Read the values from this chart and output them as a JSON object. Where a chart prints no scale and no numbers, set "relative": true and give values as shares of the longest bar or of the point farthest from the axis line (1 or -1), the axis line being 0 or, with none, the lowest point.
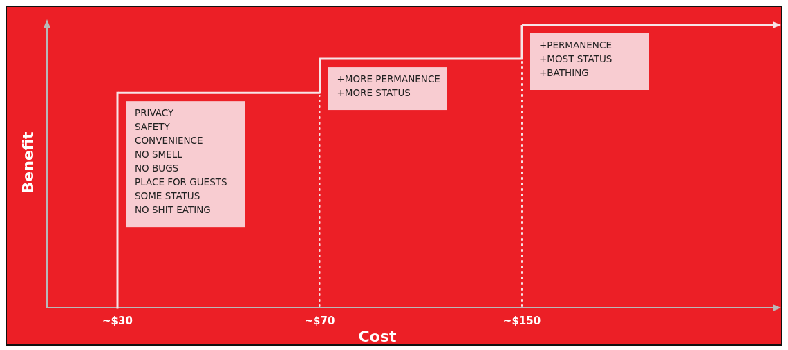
{
  "chart_data": {
    "type": "step",
    "relative": true,
    "xlabel": "Cost",
    "ylabel": "Benefit",
    "categories": [
      "~$30",
      "~$70",
      "~$150"
    ],
    "series": [
      {
        "color": "#f7e4e6",
        "values": [
          0.76,
          0.88,
          1
        ]
      }
    ],
    "ref_lines": [
      {
        "axis": "x",
        "value": "~$30",
        "line_style": "solid",
        "color": "#f7e4e6"
      },
      {
        "axis": "x",
        "value": "~$70",
        "line_style": "dotted",
        "color": "#f7e4e6"
      },
      {
        "axis": "x",
        "value": "~$150",
        "line_style": "dotted",
        "color": "#f7e4e6"
      }
    ],
    "annotations": [
      "PRIVACY\nSAFETY\nCONVENIENCE\nNO SMELL\nNO BUGS\nPLACE FOR GUESTS\nSOME STATUS\nNO SHIT EATING",
      "+MORE PERMANENCE\n+MORE STATUS",
      "+PERMANENCE\n+MOST STATUS\n+BATHING"
    ]
  }
}
